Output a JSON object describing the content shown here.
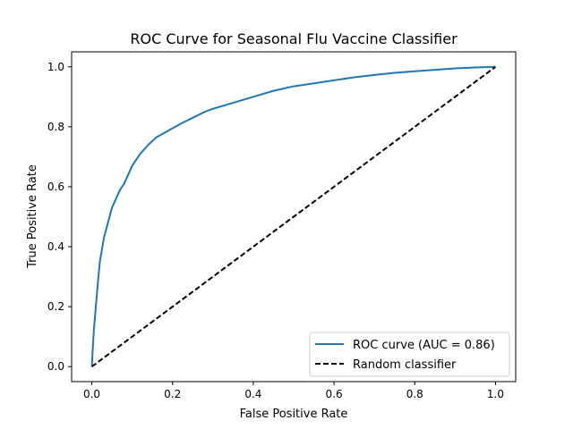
{
  "chart_data": {
    "type": "line",
    "title": "ROC Curve for Seasonal Flu Vaccine Classifier",
    "xlabel": "False Positive Rate",
    "ylabel": "True Positive Rate",
    "xlim": [
      -0.05,
      1.05
    ],
    "ylim": [
      -0.05,
      1.05
    ],
    "x_ticks": [
      0.0,
      0.2,
      0.4,
      0.6,
      0.8,
      1.0
    ],
    "x_tick_labels": [
      "0.0",
      "0.2",
      "0.4",
      "0.6",
      "0.8",
      "1.0"
    ],
    "y_ticks": [
      0.0,
      0.2,
      0.4,
      0.6,
      0.8,
      1.0
    ],
    "y_tick_labels": [
      "0.0",
      "0.2",
      "0.4",
      "0.6",
      "0.8",
      "1.0"
    ],
    "grid": false,
    "legend_position": "lower-right",
    "series": [
      {
        "name": "ROC curve (AUC = 0.86)",
        "color": "#1f77b4",
        "style": "solid",
        "x": [
          0.0,
          0.002,
          0.005,
          0.01,
          0.015,
          0.02,
          0.03,
          0.04,
          0.05,
          0.06,
          0.07,
          0.08,
          0.09,
          0.1,
          0.12,
          0.14,
          0.16,
          0.18,
          0.2,
          0.22,
          0.25,
          0.28,
          0.3,
          0.35,
          0.4,
          0.45,
          0.5,
          0.55,
          0.6,
          0.65,
          0.7,
          0.75,
          0.8,
          0.85,
          0.9,
          0.95,
          1.0
        ],
        "y": [
          0.0,
          0.05,
          0.12,
          0.2,
          0.28,
          0.35,
          0.43,
          0.48,
          0.53,
          0.56,
          0.59,
          0.61,
          0.64,
          0.67,
          0.71,
          0.74,
          0.765,
          0.78,
          0.795,
          0.81,
          0.83,
          0.85,
          0.86,
          0.88,
          0.9,
          0.92,
          0.935,
          0.945,
          0.955,
          0.965,
          0.973,
          0.98,
          0.985,
          0.99,
          0.995,
          0.998,
          1.0
        ]
      },
      {
        "name": "Random classifier",
        "color": "#000000",
        "style": "dashed",
        "x": [
          0.0,
          1.0
        ],
        "y": [
          0.0,
          1.0
        ]
      }
    ]
  }
}
